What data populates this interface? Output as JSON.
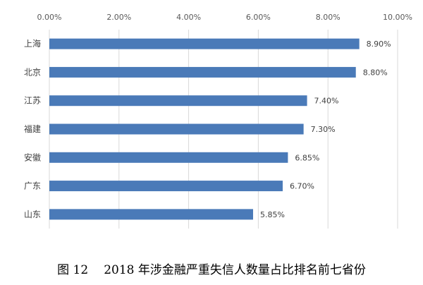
{
  "chart_data": {
    "type": "bar",
    "orientation": "horizontal",
    "categories": [
      "上海",
      "北京",
      "江苏",
      "福建",
      "安徽",
      "广东",
      "山东"
    ],
    "values": [
      8.9,
      8.8,
      7.4,
      7.3,
      6.85,
      6.7,
      5.85
    ],
    "value_labels": [
      "8.90%",
      "8.80%",
      "7.40%",
      "7.30%",
      "6.85%",
      "6.70%",
      "5.85%"
    ],
    "xlim": [
      0,
      10
    ],
    "x_ticks": [
      0,
      2,
      4,
      6,
      8,
      10
    ],
    "x_tick_labels": [
      "0.00%",
      "2.00%",
      "4.00%",
      "6.00%",
      "8.00%",
      "10.00%"
    ],
    "x_axis_position": "top",
    "grid": true,
    "bar_color": "#4a7ab8",
    "grid_color": "#d9d9d9"
  },
  "caption": {
    "figure_no": "图 12",
    "title": "2018 年涉金融严重失信人数量占比排名前七省份"
  }
}
